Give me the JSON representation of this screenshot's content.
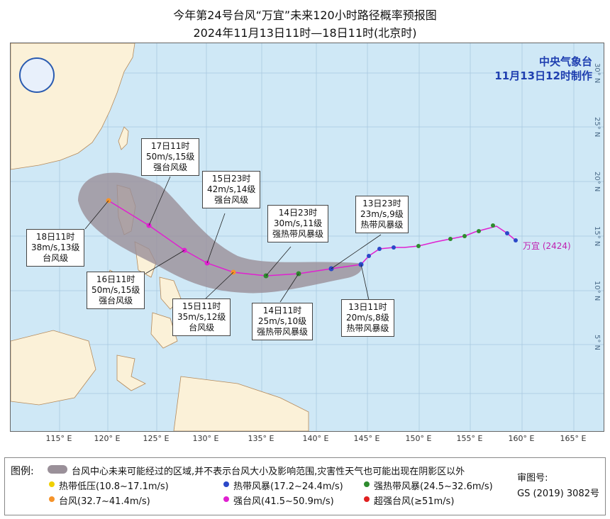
{
  "title_line1": "今年第24号台风“万宜”未来120小时路径概率预报图",
  "title_line2": "2024年11月13日11时—18日11时(北京时)",
  "agency": {
    "name": "中央气象台",
    "issued": "11月13日12时制作"
  },
  "storm_label": "万宜 (2424)",
  "labels": [
    {
      "id": "lbl-1711",
      "line1": "17日11时",
      "line2": "50m/s,15级",
      "line3": "强台风级"
    },
    {
      "id": "lbl-1523",
      "line1": "15日23时",
      "line2": "42m/s,14级",
      "line3": "强台风级"
    },
    {
      "id": "lbl-1423",
      "line1": "14日23时",
      "line2": "30m/s,11级",
      "line3": "强热带风暴级"
    },
    {
      "id": "lbl-1323",
      "line1": "13日23时",
      "line2": "23m/s,9级",
      "line3": "热带风暴级"
    },
    {
      "id": "lbl-1811",
      "line1": "18日11时",
      "line2": "38m/s,13级",
      "line3": "台风级"
    },
    {
      "id": "lbl-1611",
      "line1": "16日11时",
      "line2": "50m/s,15级",
      "line3": "强台风级"
    },
    {
      "id": "lbl-1511",
      "line1": "15日11时",
      "line2": "35m/s,12级",
      "line3": "台风级"
    },
    {
      "id": "lbl-1411",
      "line1": "14日11时",
      "line2": "25m/s,10级",
      "line3": "强热带风暴级"
    },
    {
      "id": "lbl-1311",
      "line1": "13日11时",
      "line2": "20m/s,8级",
      "line3": "热带风暴级"
    }
  ],
  "longitudes": [
    "115° E",
    "120° E",
    "125° E",
    "130° E",
    "135° E",
    "140° E",
    "145° E",
    "150° E",
    "155° E",
    "160° E",
    "165° E"
  ],
  "latitudes": [
    "30° N",
    "25° N",
    "20° N",
    "15° N",
    "10° N",
    "5° N"
  ],
  "legend": {
    "title": "图例:",
    "area": "台风中心未来可能经过的区域,并不表示台风大小及影响范围,灾害性天气也可能出现在阴影区以外",
    "items": [
      {
        "text": "热带低压(10.8~17.1m/s)",
        "color": "#f0d000"
      },
      {
        "text": "热带风暴(17.2~24.4m/s)",
        "color": "#2b48c8"
      },
      {
        "text": "强热带风暴(24.5~32.6m/s)",
        "color": "#2e8b2e"
      },
      {
        "text": "台风(32.7~41.4m/s)",
        "color": "#f5932a"
      },
      {
        "text": "强台风(41.5~50.9m/s)",
        "color": "#e020d0"
      },
      {
        "text": "超强台风(≥51m/s)",
        "color": "#e02020"
      }
    ],
    "review_label": "审图号:",
    "review_no": "GS (2019) 3082号"
  }
}
